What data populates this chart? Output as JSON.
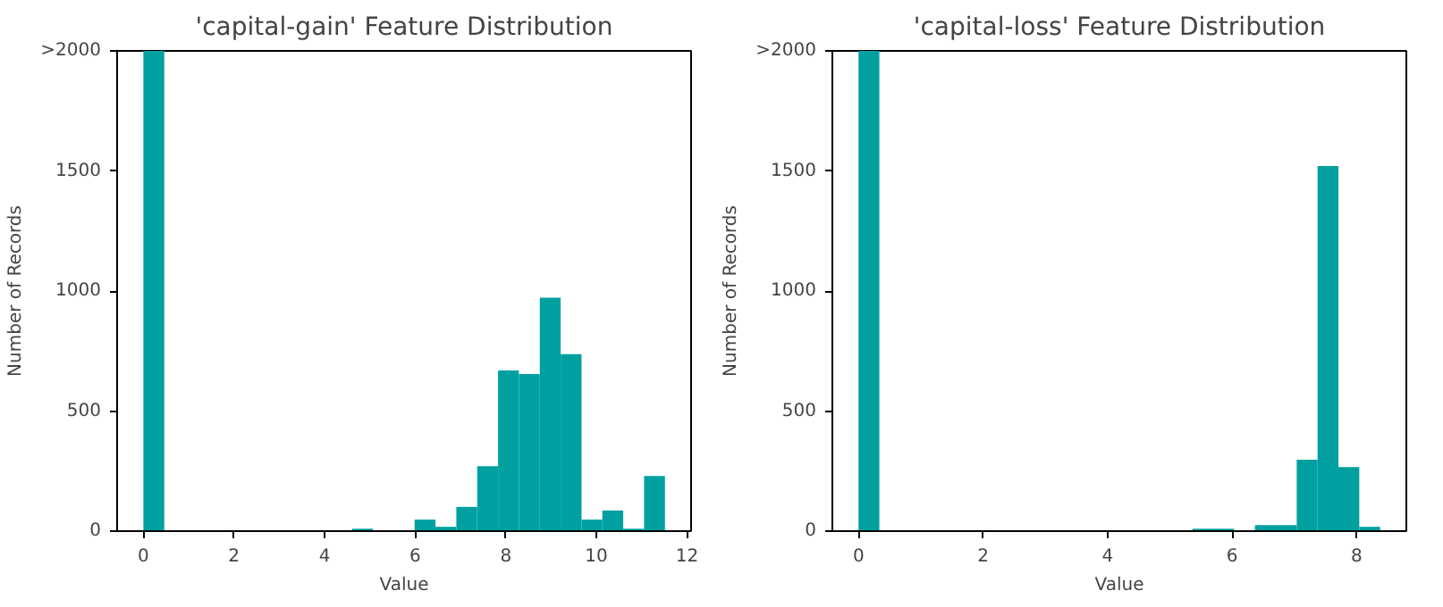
{
  "chart_data": [
    {
      "type": "histogram",
      "title": "'capital-gain' Feature Distribution",
      "xlabel": "Value",
      "ylabel": "Number of Records",
      "color": "#00a0a0",
      "bins": [
        0,
        0.461,
        0.921,
        1.382,
        1.842,
        2.303,
        2.763,
        3.224,
        3.684,
        4.145,
        4.605,
        5.066,
        5.526,
        5.987,
        6.447,
        6.908,
        7.368,
        7.829,
        8.289,
        8.75,
        9.21,
        9.671,
        10.131,
        10.592,
        11.052,
        11.513
      ],
      "values": [
        2000,
        0,
        0,
        0,
        0,
        0,
        0,
        0,
        0,
        0,
        10,
        0,
        0,
        48,
        18,
        101,
        270,
        669,
        654,
        972,
        737,
        48,
        86,
        10,
        230
      ],
      "xlim": [
        -0.58,
        12.09
      ],
      "xticks": [
        0,
        2,
        4,
        6,
        8,
        10,
        12
      ],
      "ylim": [
        0,
        2000
      ],
      "yticks": [
        0,
        500,
        1000,
        1500,
        {
          "value": 2000,
          "label": ">2000"
        }
      ],
      "grid": false
    },
    {
      "type": "histogram",
      "title": "'capital-loss' Feature Distribution",
      "xlabel": "Value",
      "ylabel": "Number of Records",
      "color": "#00a0a0",
      "bins": [
        0,
        0.335,
        0.67,
        1.006,
        1.341,
        1.676,
        2.011,
        2.346,
        2.681,
        3.017,
        3.352,
        3.687,
        4.022,
        4.357,
        4.692,
        5.028,
        5.363,
        5.698,
        6.033,
        6.368,
        6.703,
        7.039,
        7.374,
        7.709,
        8.044,
        8.379
      ],
      "values": [
        2000,
        0,
        0,
        0,
        0,
        0,
        0,
        0,
        0,
        0,
        0,
        0,
        0,
        0,
        0,
        0,
        10,
        10,
        0,
        25,
        25,
        297,
        1520,
        267,
        18
      ],
      "xlim": [
        -0.42,
        8.8
      ],
      "xticks": [
        0,
        2,
        4,
        6,
        8
      ],
      "ylim": [
        0,
        2000
      ],
      "yticks": [
        0,
        500,
        1000,
        1500,
        {
          "value": 2000,
          "label": ">2000"
        }
      ],
      "grid": false
    }
  ]
}
